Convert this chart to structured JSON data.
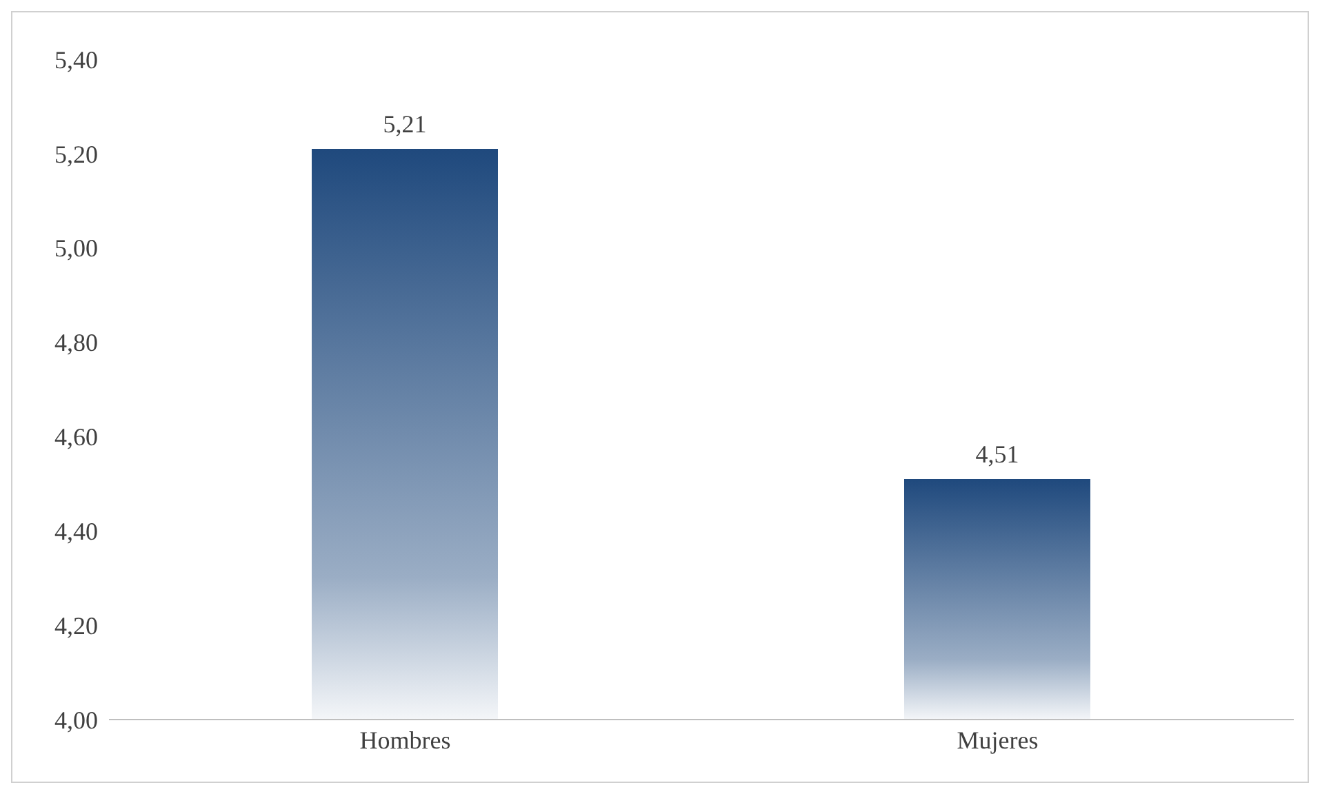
{
  "chart_data": {
    "type": "bar",
    "categories": [
      "Hombres",
      "Mujeres"
    ],
    "values": [
      5.21,
      4.51
    ],
    "color": "#1f497d",
    "value_labels": [
      "5,21",
      "4,51"
    ],
    "ylim": [
      4.0,
      5.4
    ],
    "yticks": [
      {
        "value": 4.0,
        "label": "4,00"
      },
      {
        "value": 4.2,
        "label": "4,20"
      },
      {
        "value": 4.4,
        "label": "4,40"
      },
      {
        "value": 4.6,
        "label": "4,60"
      },
      {
        "value": 4.8,
        "label": "4,80"
      },
      {
        "value": 5.0,
        "label": "5,00"
      },
      {
        "value": 5.2,
        "label": "5,20"
      },
      {
        "value": 5.4,
        "label": "5,40"
      }
    ],
    "grid": false,
    "legend": false
  }
}
